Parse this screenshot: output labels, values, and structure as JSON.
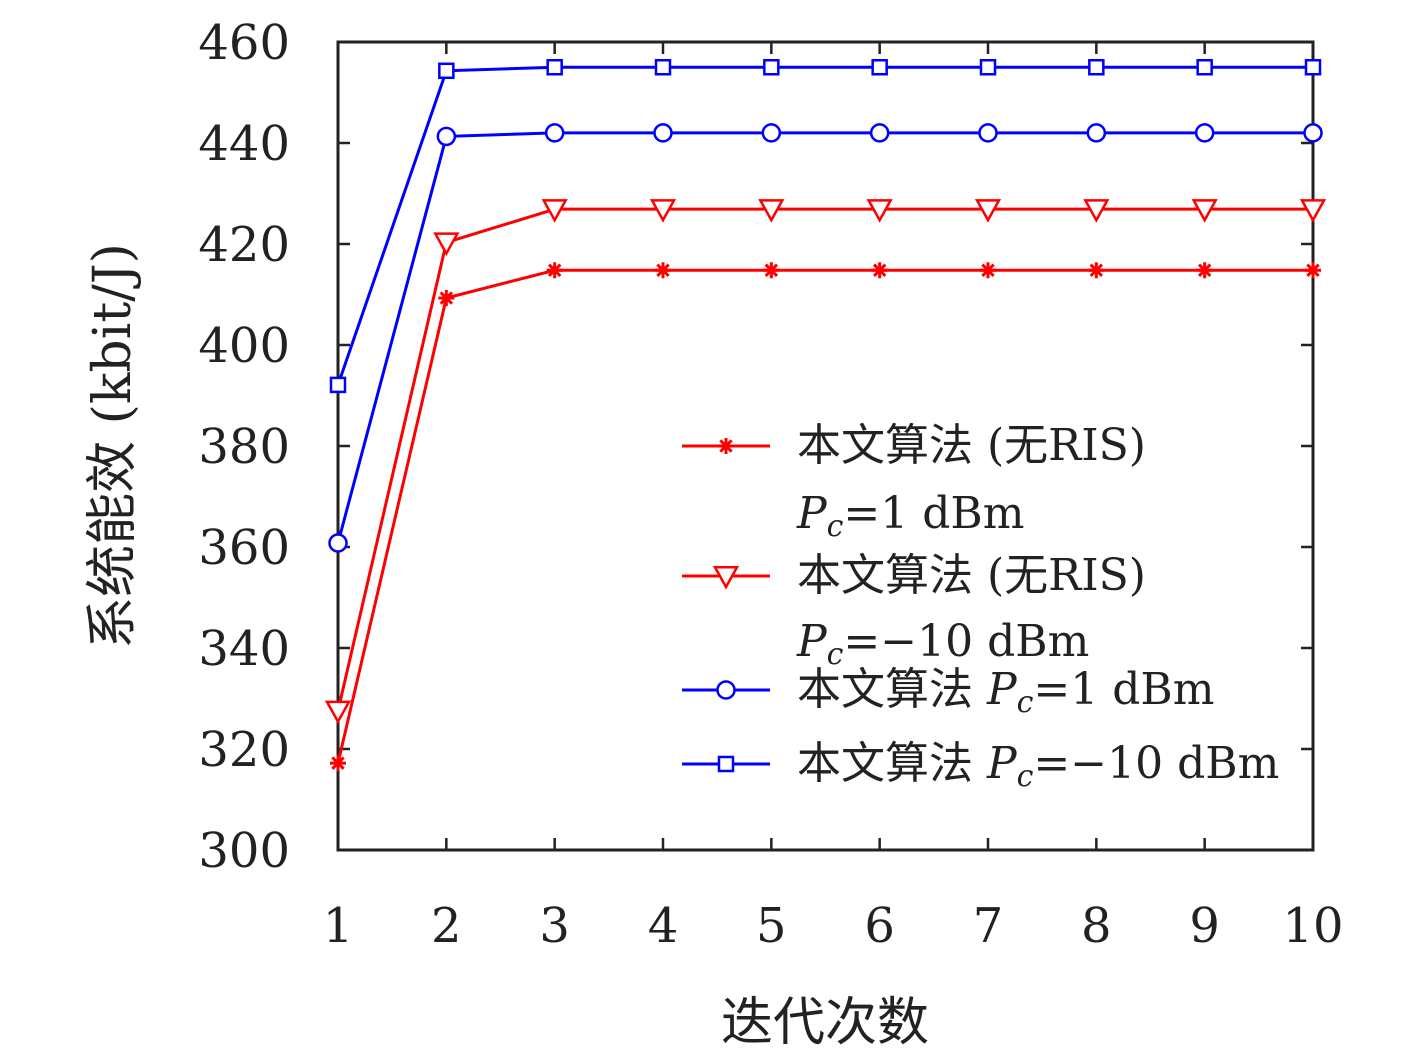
{
  "chart_data": {
    "type": "line",
    "title": "",
    "xlabel": "迭代次数",
    "ylabel": "系统能效 (kbit/J)",
    "x": [
      1,
      2,
      3,
      4,
      5,
      6,
      7,
      8,
      9,
      10
    ],
    "xticks": [
      "1",
      "2",
      "3",
      "4",
      "5",
      "6",
      "7",
      "8",
      "9",
      "10"
    ],
    "yticks": [
      "300",
      "320",
      "340",
      "360",
      "380",
      "400",
      "420",
      "440",
      "460"
    ],
    "xlim": [
      1,
      10
    ],
    "ylim": [
      300,
      460
    ],
    "grid": false,
    "legend_position": "lower-right",
    "series": [
      {
        "name": "本文算法 (无RIS)",
        "name_sub": "Pc=1 dBm",
        "color": "#ff0000",
        "marker": "asterisk",
        "values": [
          317.2,
          409.3,
          414.8,
          414.8,
          414.8,
          414.8,
          414.8,
          414.8,
          414.8,
          414.8
        ]
      },
      {
        "name": "本文算法 (无RIS)",
        "name_sub": "Pc=−10 dBm",
        "color": "#ff0000",
        "marker": "triangle-down",
        "values": [
          327.6,
          420.3,
          426.9,
          426.9,
          426.9,
          426.9,
          426.9,
          426.9,
          426.9,
          426.9
        ]
      },
      {
        "name": "本文算法 Pc=1 dBm",
        "name_sub": "",
        "color": "#0000ff",
        "marker": "circle",
        "values": [
          360.8,
          441.3,
          442.0,
          442.0,
          442.0,
          442.0,
          442.0,
          442.0,
          442.0,
          442.0
        ]
      },
      {
        "name": "本文算法 Pc=−10 dBm",
        "name_sub": "",
        "color": "#0000ff",
        "marker": "square",
        "values": [
          392.1,
          454.3,
          455.0,
          455.0,
          455.0,
          455.0,
          455.0,
          455.0,
          455.0,
          455.0
        ]
      }
    ]
  },
  "legend": {
    "items": [
      {
        "label": "本文算法 (无RIS)",
        "sub_prefix": "P",
        "sub_script": "c",
        "sub_suffix": "=1 dBm"
      },
      {
        "label": "本文算法 (无RIS)",
        "sub_prefix": "P",
        "sub_script": "c",
        "sub_suffix": "=−10 dBm"
      },
      {
        "label": "本文算法 ",
        "inline_prefix": "P",
        "inline_script": "c",
        "inline_suffix": "=1 dBm"
      },
      {
        "label": "本文算法 ",
        "inline_prefix": "P",
        "inline_script": "c",
        "inline_suffix": "=−10 dBm"
      }
    ]
  }
}
